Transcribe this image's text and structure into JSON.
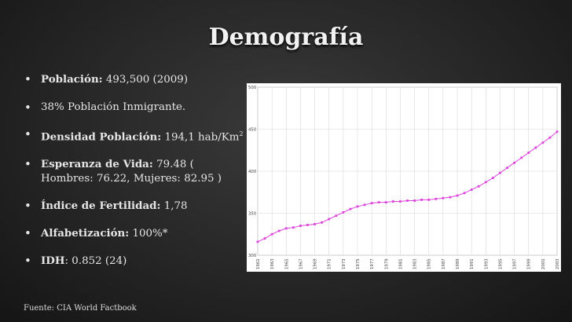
{
  "slide": {
    "title": "Demografía",
    "source": "Fuente: CIA World Factbook"
  },
  "bullets": [
    {
      "label": "Población:",
      "text": " 493,500 (2009)"
    },
    {
      "label": "",
      "text": "38% Población Inmigrante."
    },
    {
      "label": "Densidad Población:",
      "text": "  194,1 hab/Km",
      "sup": "2"
    },
    {
      "label": "Esperanza de Vida:",
      "text": " 79.48 ( Hombres: 76.22, Mujeres: 82.95 )"
    },
    {
      "label": "Índice de Fertilidad:",
      "text": " 1,78"
    },
    {
      "label": "Alfabetización:",
      "text": " 100%*"
    },
    {
      "label": "IDH",
      "text": ": 0.852 (24)"
    }
  ],
  "chart_data": {
    "type": "line",
    "title": "",
    "xlabel": "",
    "ylabel": "",
    "ylim": [
      300,
      500
    ],
    "yticks": [
      "300",
      "350",
      "400",
      "450",
      "500"
    ],
    "xticks": [
      "1961",
      "1963",
      "1965",
      "1967",
      "1969",
      "1971",
      "1973",
      "1975",
      "1977",
      "1979",
      "1981",
      "1983",
      "1985",
      "1987",
      "1989",
      "1991",
      "1993",
      "1995",
      "1997",
      "1999",
      "2001",
      "2003"
    ],
    "grid": true,
    "color": "#dd44dd",
    "x": [
      1961,
      1962,
      1963,
      1964,
      1965,
      1966,
      1967,
      1968,
      1969,
      1970,
      1971,
      1972,
      1973,
      1974,
      1975,
      1976,
      1977,
      1978,
      1979,
      1980,
      1981,
      1982,
      1983,
      1984,
      1985,
      1986,
      1987,
      1988,
      1989,
      1990,
      1991,
      1992,
      1993,
      1994,
      1995,
      1996,
      1997,
      1998,
      1999,
      2000,
      2001,
      2002,
      2003
    ],
    "y": [
      316,
      320,
      325,
      329,
      332,
      333,
      335,
      336,
      337,
      339,
      343,
      347,
      351,
      355,
      358,
      360,
      362,
      363,
      363,
      364,
      364,
      365,
      365,
      366,
      366,
      367,
      368,
      369,
      371,
      374,
      378,
      382,
      387,
      392,
      398,
      404,
      410,
      416,
      422,
      428,
      434,
      440,
      447
    ]
  }
}
